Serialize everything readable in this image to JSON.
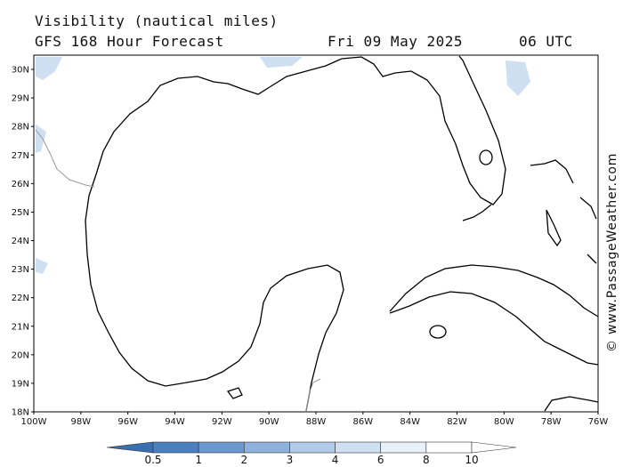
{
  "header": {
    "title": "Visibility (nautical miles)",
    "subtitle": "GFS 168 Hour Forecast",
    "date": "Fri 09 May 2025",
    "time": "06 UTC"
  },
  "map": {
    "lat_labels": [
      "30N",
      "29N",
      "28N",
      "27N",
      "26N",
      "25N",
      "24N",
      "23N",
      "22N",
      "21N",
      "20N",
      "19N",
      "18N"
    ],
    "lon_labels": [
      "100W",
      "98W",
      "96W",
      "94W",
      "92W",
      "90W",
      "88W",
      "86W",
      "84W",
      "82W",
      "80W",
      "78W",
      "76W"
    ],
    "land_color": "#ffffff",
    "coast_color": "#000000",
    "border_color": "#999999",
    "low_visibility_color": "#c6d9ee"
  },
  "legend": {
    "labels": [
      "0.5",
      "1",
      "2",
      "3",
      "4",
      "6",
      "8",
      "10"
    ],
    "colors": [
      "#3a6fb0",
      "#4a7fc0",
      "#6b98cf",
      "#8fb2dd",
      "#b2cbe8",
      "#d0e0f3",
      "#e8f0fa",
      "#ffffff"
    ]
  },
  "credit": "© www.PassageWeather.com"
}
